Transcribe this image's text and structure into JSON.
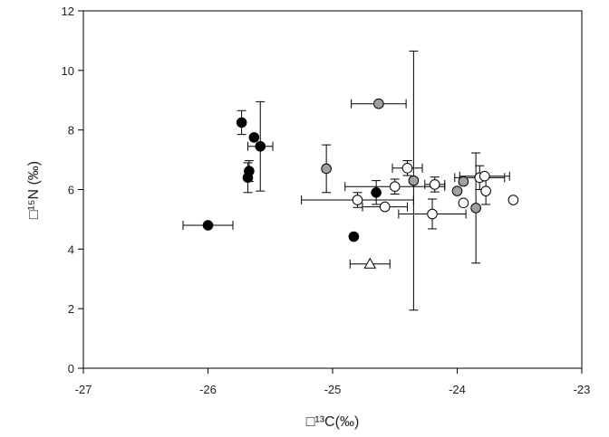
{
  "chart_data": {
    "type": "scatter",
    "title": "",
    "xlabel": "□¹³C(‰)",
    "ylabel": "□¹⁵N (‰)",
    "xlim": [
      -27,
      -23
    ],
    "ylim": [
      0,
      12
    ],
    "xticks": [
      -27,
      -26,
      -25,
      -24,
      -23
    ],
    "yticks": [
      0,
      2,
      4,
      6,
      8,
      10,
      12
    ],
    "grid": false,
    "legend": "none",
    "series": [
      {
        "marker": "filled-circle",
        "color": "#000000",
        "points": [
          {
            "x": -26.0,
            "y": 4.8,
            "xerr": 0.2
          },
          {
            "x": -25.73,
            "y": 8.25,
            "yerr": 0.4
          },
          {
            "x": -25.63,
            "y": 7.75
          },
          {
            "x": -25.58,
            "y": 7.45,
            "xerr": 0.1,
            "yerr": 1.5
          },
          {
            "x": -25.67,
            "y": 6.62,
            "yerr": 0.35
          },
          {
            "x": -25.68,
            "y": 6.4,
            "yerr": 0.5
          },
          {
            "x": -24.65,
            "y": 5.9,
            "yerr": 0.4
          },
          {
            "x": -24.83,
            "y": 4.42
          }
        ]
      },
      {
        "marker": "gray-circle",
        "color": "#a0a0a0",
        "points": [
          {
            "x": -24.63,
            "y": 8.88,
            "xerr": 0.22
          },
          {
            "x": -25.05,
            "y": 6.7,
            "yerr": 0.8
          },
          {
            "x": -24.35,
            "y": 6.3,
            "yerr": 4.35
          },
          {
            "x": -24.0,
            "y": 5.95
          },
          {
            "x": -23.95,
            "y": 6.27
          },
          {
            "x": -23.85,
            "y": 5.38,
            "yerr": 1.85
          }
        ]
      },
      {
        "marker": "open-circle",
        "color": "#ffffff",
        "points": [
          {
            "x": -24.4,
            "y": 6.72,
            "xerr": 0.12,
            "yerr": 0.25
          },
          {
            "x": -24.5,
            "y": 6.1,
            "xerr": 0.4,
            "yerr": 0.25
          },
          {
            "x": -24.18,
            "y": 6.17,
            "xerr": 0.08,
            "yerr": 0.25
          },
          {
            "x": -24.8,
            "y": 5.65,
            "xerr": 0.45,
            "yerr": 0.25
          },
          {
            "x": -24.58,
            "y": 5.42,
            "xerr": 0.18
          },
          {
            "x": -24.2,
            "y": 5.18,
            "xerr": 0.27,
            "yerr": 0.5
          },
          {
            "x": -23.95,
            "y": 5.55
          },
          {
            "x": -23.82,
            "y": 6.4,
            "xerr": 0.2,
            "yerr": 0.4
          },
          {
            "x": -23.78,
            "y": 6.45,
            "xerr": 0.2
          },
          {
            "x": -23.77,
            "y": 5.95,
            "yerr": 0.45
          },
          {
            "x": -23.55,
            "y": 5.65
          }
        ]
      },
      {
        "marker": "open-triangle",
        "color": "#ffffff",
        "points": [
          {
            "x": -24.7,
            "y": 3.5,
            "xerr": 0.16
          }
        ]
      }
    ]
  }
}
